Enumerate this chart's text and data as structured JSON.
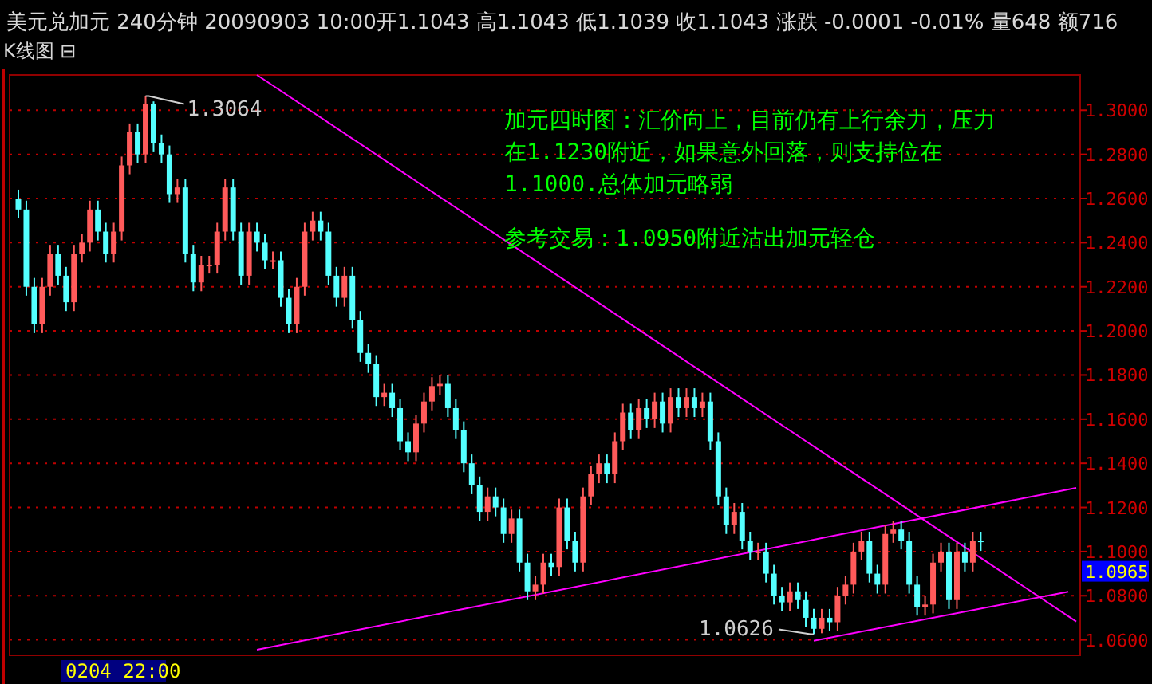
{
  "chart_data": {
    "type": "candlestick",
    "title": "美元兑加元 240分钟  20090903 10:00开1.1043 高1.1043 低1.1039 收1.1043 涨跌  -0.0001 -0.01% 量648 额716",
    "subtitle": "K线图 ⊟",
    "xlabel": "0204 22:00",
    "categories": [
      null,
      null,
      null,
      null,
      null,
      null,
      null,
      null,
      null,
      null,
      null,
      null,
      null,
      null,
      null,
      null,
      null,
      null,
      null,
      null,
      null,
      null,
      null,
      null,
      null,
      null,
      null,
      null,
      null,
      null,
      null,
      null,
      null,
      null,
      null,
      null,
      null,
      null,
      null,
      null,
      null,
      null,
      null,
      null,
      null,
      null,
      null,
      null,
      null,
      null,
      null,
      null,
      null,
      null,
      null,
      null,
      null,
      null,
      null,
      null,
      null,
      null,
      null,
      null,
      null,
      null,
      null,
      null,
      null,
      null,
      null,
      null,
      null,
      null,
      null,
      null,
      null,
      null,
      null,
      null,
      null,
      null,
      null,
      null,
      null,
      null,
      null,
      null,
      null,
      null,
      null,
      null,
      null,
      null,
      null,
      null,
      null,
      null,
      null,
      null,
      null,
      null,
      null,
      null,
      null,
      null,
      null,
      null,
      null,
      null,
      null,
      null,
      null,
      null,
      null,
      null,
      null,
      null,
      null,
      null,
      null,
      null,
      null,
      null,
      null,
      null,
      null,
      null,
      null,
      null,
      null,
      null,
      null,
      null
    ],
    "ohlc": [
      [
        1.26,
        1.264,
        1.251,
        1.255
      ],
      [
        1.255,
        1.259,
        1.216,
        1.22
      ],
      [
        1.22,
        1.224,
        1.199,
        1.203
      ],
      [
        1.203,
        1.224,
        1.199,
        1.22
      ],
      [
        1.22,
        1.239,
        1.216,
        1.235
      ],
      [
        1.235,
        1.239,
        1.221,
        1.225
      ],
      [
        1.225,
        1.229,
        1.209,
        1.213
      ],
      [
        1.213,
        1.239,
        1.209,
        1.235
      ],
      [
        1.235,
        1.244,
        1.231,
        1.24
      ],
      [
        1.24,
        1.259,
        1.236,
        1.255
      ],
      [
        1.255,
        1.259,
        1.241,
        1.245
      ],
      [
        1.245,
        1.249,
        1.231,
        1.235
      ],
      [
        1.235,
        1.249,
        1.231,
        1.245
      ],
      [
        1.245,
        1.279,
        1.241,
        1.275
      ],
      [
        1.275,
        1.294,
        1.271,
        1.29
      ],
      [
        1.29,
        1.294,
        1.276,
        1.28
      ],
      [
        1.28,
        1.3064,
        1.276,
        1.303
      ],
      [
        1.303,
        1.304,
        1.281,
        1.285
      ],
      [
        1.285,
        1.289,
        1.276,
        1.28
      ],
      [
        1.28,
        1.284,
        1.258,
        1.262
      ],
      [
        1.262,
        1.269,
        1.258,
        1.265
      ],
      [
        1.265,
        1.269,
        1.231,
        1.235
      ],
      [
        1.235,
        1.239,
        1.218,
        1.222
      ],
      [
        1.222,
        1.234,
        1.218,
        1.23
      ],
      [
        1.23,
        1.234,
        1.226,
        1.23
      ],
      [
        1.23,
        1.249,
        1.226,
        1.245
      ],
      [
        1.245,
        1.269,
        1.241,
        1.265
      ],
      [
        1.265,
        1.269,
        1.241,
        1.245
      ],
      [
        1.245,
        1.249,
        1.221,
        1.225
      ],
      [
        1.225,
        1.249,
        1.221,
        1.245
      ],
      [
        1.245,
        1.249,
        1.236,
        1.24
      ],
      [
        1.24,
        1.244,
        1.228,
        1.232
      ],
      [
        1.232,
        1.236,
        1.228,
        1.232
      ],
      [
        1.232,
        1.236,
        1.211,
        1.215
      ],
      [
        1.215,
        1.219,
        1.199,
        1.203
      ],
      [
        1.203,
        1.224,
        1.199,
        1.22
      ],
      [
        1.22,
        1.249,
        1.216,
        1.245
      ],
      [
        1.245,
        1.254,
        1.241,
        1.25
      ],
      [
        1.25,
        1.254,
        1.241,
        1.245
      ],
      [
        1.245,
        1.249,
        1.221,
        1.225
      ],
      [
        1.225,
        1.229,
        1.211,
        1.215
      ],
      [
        1.215,
        1.229,
        1.211,
        1.225
      ],
      [
        1.225,
        1.229,
        1.201,
        1.205
      ],
      [
        1.205,
        1.209,
        1.186,
        1.19
      ],
      [
        1.19,
        1.194,
        1.181,
        1.185
      ],
      [
        1.185,
        1.189,
        1.166,
        1.17
      ],
      [
        1.17,
        1.176,
        1.166,
        1.172
      ],
      [
        1.172,
        1.176,
        1.161,
        1.165
      ],
      [
        1.165,
        1.169,
        1.146,
        1.15
      ],
      [
        1.15,
        1.154,
        1.141,
        1.145
      ],
      [
        1.145,
        1.162,
        1.141,
        1.158
      ],
      [
        1.158,
        1.172,
        1.154,
        1.168
      ],
      [
        1.168,
        1.179,
        1.164,
        1.175
      ],
      [
        1.175,
        1.18,
        1.171,
        1.176
      ],
      [
        1.176,
        1.18,
        1.161,
        1.165
      ],
      [
        1.165,
        1.169,
        1.151,
        1.155
      ],
      [
        1.155,
        1.159,
        1.136,
        1.14
      ],
      [
        1.14,
        1.144,
        1.126,
        1.13
      ],
      [
        1.13,
        1.134,
        1.114,
        1.118
      ],
      [
        1.118,
        1.129,
        1.114,
        1.125
      ],
      [
        1.125,
        1.129,
        1.116,
        1.12
      ],
      [
        1.12,
        1.124,
        1.104,
        1.108
      ],
      [
        1.108,
        1.119,
        1.104,
        1.115
      ],
      [
        1.115,
        1.119,
        1.091,
        1.095
      ],
      [
        1.095,
        1.099,
        1.078,
        1.082
      ],
      [
        1.082,
        1.089,
        1.078,
        1.085
      ],
      [
        1.085,
        1.099,
        1.081,
        1.095
      ],
      [
        1.095,
        1.099,
        1.089,
        1.093
      ],
      [
        1.093,
        1.124,
        1.089,
        1.12
      ],
      [
        1.12,
        1.124,
        1.101,
        1.105
      ],
      [
        1.105,
        1.109,
        1.091,
        1.095
      ],
      [
        1.095,
        1.129,
        1.091,
        1.125
      ],
      [
        1.125,
        1.139,
        1.121,
        1.135
      ],
      [
        1.135,
        1.144,
        1.131,
        1.14
      ],
      [
        1.14,
        1.144,
        1.131,
        1.135
      ],
      [
        1.135,
        1.154,
        1.131,
        1.15
      ],
      [
        1.15,
        1.167,
        1.146,
        1.163
      ],
      [
        1.163,
        1.167,
        1.151,
        1.155
      ],
      [
        1.155,
        1.169,
        1.151,
        1.165
      ],
      [
        1.165,
        1.169,
        1.156,
        1.16
      ],
      [
        1.16,
        1.172,
        1.156,
        1.168
      ],
      [
        1.168,
        1.172,
        1.154,
        1.158
      ],
      [
        1.158,
        1.174,
        1.154,
        1.17
      ],
      [
        1.17,
        1.174,
        1.161,
        1.165
      ],
      [
        1.165,
        1.174,
        1.161,
        1.17
      ],
      [
        1.17,
        1.174,
        1.161,
        1.165
      ],
      [
        1.165,
        1.172,
        1.161,
        1.168
      ],
      [
        1.168,
        1.172,
        1.146,
        1.15
      ],
      [
        1.15,
        1.154,
        1.121,
        1.125
      ],
      [
        1.125,
        1.129,
        1.108,
        1.112
      ],
      [
        1.112,
        1.122,
        1.108,
        1.118
      ],
      [
        1.118,
        1.122,
        1.101,
        1.105
      ],
      [
        1.105,
        1.109,
        1.096,
        1.1
      ],
      [
        1.1,
        1.104,
        1.096,
        1.1
      ],
      [
        1.1,
        1.104,
        1.086,
        1.09
      ],
      [
        1.09,
        1.094,
        1.076,
        1.08
      ],
      [
        1.08,
        1.084,
        1.073,
        1.077
      ],
      [
        1.077,
        1.086,
        1.073,
        1.082
      ],
      [
        1.082,
        1.086,
        1.074,
        1.078
      ],
      [
        1.078,
        1.082,
        1.066,
        1.07
      ],
      [
        1.07,
        1.074,
        1.0626,
        1.065
      ],
      [
        1.065,
        1.074,
        1.063,
        1.07
      ],
      [
        1.07,
        1.074,
        1.064,
        1.068
      ],
      [
        1.068,
        1.084,
        1.064,
        1.08
      ],
      [
        1.08,
        1.089,
        1.076,
        1.085
      ],
      [
        1.085,
        1.104,
        1.081,
        1.1
      ],
      [
        1.1,
        1.109,
        1.096,
        1.105
      ],
      [
        1.105,
        1.109,
        1.086,
        1.09
      ],
      [
        1.09,
        1.094,
        1.081,
        1.085
      ],
      [
        1.085,
        1.112,
        1.081,
        1.108
      ],
      [
        1.108,
        1.114,
        1.104,
        1.11
      ],
      [
        1.11,
        1.114,
        1.101,
        1.105
      ],
      [
        1.105,
        1.109,
        1.081,
        1.085
      ],
      [
        1.085,
        1.089,
        1.071,
        1.075
      ],
      [
        1.075,
        1.08,
        1.071,
        1.076
      ],
      [
        1.076,
        1.099,
        1.072,
        1.095
      ],
      [
        1.095,
        1.104,
        1.091,
        1.1
      ],
      [
        1.1,
        1.104,
        1.074,
        1.078
      ],
      [
        1.078,
        1.104,
        1.074,
        1.1
      ],
      [
        1.1,
        1.104,
        1.091,
        1.095
      ],
      [
        1.095,
        1.109,
        1.091,
        1.105
      ],
      [
        1.105,
        1.109,
        1.1003,
        1.1043
      ],
      null,
      null,
      null,
      null,
      null,
      null,
      null,
      null,
      null,
      null,
      null,
      null
    ],
    "colors": [
      "#54ffff",
      "#54ffff",
      "#54ffff",
      "#ff5a5a",
      "#ff5a5a",
      "#54ffff",
      "#54ffff",
      "#ff5a5a",
      "#ff5a5a",
      "#ff5a5a",
      "#54ffff",
      "#54ffff",
      "#ff5a5a",
      "#ff5a5a",
      "#ff5a5a",
      "#54ffff",
      "#ff5a5a",
      "#54ffff",
      "#54ffff",
      "#54ffff",
      "#ff5a5a",
      "#54ffff",
      "#54ffff",
      "#ff5a5a",
      "#ff5a5a",
      "#ff5a5a",
      "#ff5a5a",
      "#54ffff",
      "#54ffff",
      "#ff5a5a",
      "#54ffff",
      "#54ffff",
      "#ff5a5a",
      "#54ffff",
      "#54ffff",
      "#ff5a5a",
      "#ff5a5a",
      "#ff5a5a",
      "#54ffff",
      "#54ffff",
      "#54ffff",
      "#ff5a5a",
      "#54ffff",
      "#54ffff",
      "#54ffff",
      "#54ffff",
      "#ff5a5a",
      "#54ffff",
      "#54ffff",
      "#54ffff",
      "#ff5a5a",
      "#ff5a5a",
      "#ff5a5a",
      "#ff5a5a",
      "#54ffff",
      "#54ffff",
      "#54ffff",
      "#54ffff",
      "#54ffff",
      "#ff5a5a",
      "#54ffff",
      "#54ffff",
      "#ff5a5a",
      "#54ffff",
      "#54ffff",
      "#ff5a5a",
      "#ff5a5a",
      "#54ffff",
      "#ff5a5a",
      "#54ffff",
      "#54ffff",
      "#ff5a5a",
      "#ff5a5a",
      "#ff5a5a",
      "#54ffff",
      "#ff5a5a",
      "#ff5a5a",
      "#54ffff",
      "#ff5a5a",
      "#54ffff",
      "#ff5a5a",
      "#54ffff",
      "#ff5a5a",
      "#54ffff",
      "#ff5a5a",
      "#54ffff",
      "#ff5a5a",
      "#54ffff",
      "#54ffff",
      "#54ffff",
      "#ff5a5a",
      "#54ffff",
      "#54ffff",
      "#ff5a5a",
      "#54ffff",
      "#54ffff",
      "#54ffff",
      "#ff5a5a",
      "#54ffff",
      "#54ffff",
      "#54ffff",
      "#ff5a5a",
      "#54ffff",
      "#ff5a5a",
      "#ff5a5a",
      "#ff5a5a",
      "#ff5a5a",
      "#54ffff",
      "#54ffff",
      "#ff5a5a",
      "#ff5a5a",
      "#54ffff",
      "#54ffff",
      "#54ffff",
      "#ff5a5a",
      "#ff5a5a",
      "#ff5a5a",
      "#54ffff",
      "#ff5a5a",
      "#54ffff",
      "#ff5a5a",
      "#54ffff",
      null,
      null,
      null,
      null,
      null,
      null,
      null,
      null,
      null,
      null,
      null,
      null
    ],
    "series": [
      {
        "type": "line",
        "values": [
          null,
          null,
          null,
          null,
          null,
          null,
          null,
          null,
          null,
          null,
          null,
          null,
          null,
          null,
          null,
          null,
          null,
          null,
          null,
          null,
          null,
          null,
          null,
          null,
          null,
          null,
          null,
          null,
          null,
          null,
          1.316,
          null,
          null,
          null,
          null,
          null,
          null,
          null,
          null,
          null,
          null,
          null,
          null,
          null,
          null,
          null,
          null,
          null,
          null,
          null,
          null,
          null,
          null,
          null,
          null,
          null,
          null,
          null,
          null,
          null,
          null,
          null,
          null,
          null,
          null,
          null,
          null,
          null,
          null,
          null,
          null,
          null,
          null,
          null,
          null,
          null,
          null,
          null,
          null,
          null,
          null,
          null,
          null,
          null,
          null,
          null,
          null,
          null,
          null,
          null,
          null,
          null,
          null,
          null,
          null,
          null,
          null,
          null,
          null,
          null,
          null,
          null,
          null,
          null,
          null,
          null,
          null,
          null,
          null,
          null,
          null,
          null,
          null,
          null,
          null,
          null,
          null,
          null,
          null,
          null,
          null,
          null,
          null,
          null,
          null,
          null,
          null,
          null,
          null,
          null,
          null,
          null,
          null,
          1.0683
        ],
        "color": "#ff00ff"
      },
      {
        "type": "line",
        "values": [
          null,
          null,
          null,
          null,
          null,
          null,
          null,
          null,
          null,
          null,
          null,
          null,
          null,
          null,
          null,
          null,
          null,
          null,
          null,
          null,
          null,
          null,
          null,
          null,
          null,
          null,
          null,
          null,
          null,
          null,
          1.0555,
          null,
          null,
          null,
          null,
          null,
          null,
          null,
          null,
          null,
          null,
          null,
          null,
          null,
          null,
          null,
          null,
          null,
          null,
          null,
          null,
          null,
          null,
          null,
          null,
          null,
          null,
          null,
          null,
          null,
          null,
          null,
          null,
          null,
          null,
          null,
          null,
          null,
          null,
          null,
          null,
          null,
          null,
          null,
          null,
          null,
          null,
          null,
          null,
          null,
          null,
          null,
          null,
          null,
          null,
          null,
          null,
          null,
          null,
          null,
          null,
          null,
          null,
          null,
          null,
          null,
          null,
          null,
          null,
          null,
          null,
          null,
          null,
          null,
          null,
          null,
          null,
          null,
          null,
          null,
          null,
          null,
          null,
          null,
          null,
          null,
          null,
          null,
          null,
          null,
          null,
          null,
          null,
          null,
          null,
          null,
          null,
          null,
          null,
          null,
          null,
          null,
          null,
          1.1289
        ],
        "color": "#ff00ff"
      },
      {
        "type": "line",
        "values": [
          null,
          null,
          null,
          null,
          null,
          null,
          null,
          null,
          null,
          null,
          null,
          null,
          null,
          null,
          null,
          null,
          null,
          null,
          null,
          null,
          null,
          null,
          null,
          null,
          null,
          null,
          null,
          null,
          null,
          null,
          null,
          null,
          null,
          null,
          null,
          null,
          null,
          null,
          null,
          null,
          null,
          null,
          null,
          null,
          null,
          null,
          null,
          null,
          null,
          null,
          null,
          null,
          null,
          null,
          null,
          null,
          null,
          null,
          null,
          null,
          null,
          null,
          null,
          null,
          null,
          null,
          null,
          null,
          null,
          null,
          null,
          null,
          null,
          null,
          null,
          null,
          null,
          null,
          null,
          null,
          null,
          null,
          null,
          null,
          null,
          null,
          null,
          null,
          null,
          null,
          null,
          null,
          null,
          null,
          null,
          null,
          null,
          null,
          null,
          null,
          1.0596,
          null,
          null,
          null,
          null,
          null,
          null,
          null,
          null,
          null,
          null,
          null,
          null,
          null,
          null,
          null,
          null,
          null,
          null,
          null,
          null,
          null,
          null,
          null,
          null,
          null,
          null,
          null,
          null,
          null,
          null,
          null,
          1.0818,
          null
        ],
        "color": "#ff00ff"
      }
    ],
    "ylim": [
      1.053,
      1.316
    ],
    "yticks": [
      {
        "value": 1.06,
        "label": "1.0600"
      },
      {
        "value": 1.08,
        "label": "1.0800"
      },
      {
        "value": 1.1,
        "label": "1.1000"
      },
      {
        "value": 1.12,
        "label": "1.1200"
      },
      {
        "value": 1.14,
        "label": "1.1400"
      },
      {
        "value": 1.16,
        "label": "1.1600"
      },
      {
        "value": 1.18,
        "label": "1.1800"
      },
      {
        "value": 1.2,
        "label": "1.2000"
      },
      {
        "value": 1.22,
        "label": "1.2200"
      },
      {
        "value": 1.24,
        "label": "1.2400"
      },
      {
        "value": 1.26,
        "label": "1.2600"
      },
      {
        "value": 1.28,
        "label": "1.2800"
      },
      {
        "value": 1.3,
        "label": "1.3000"
      }
    ],
    "grid": "y",
    "annotations": [
      "1.3064",
      "1.0626",
      "1.0965",
      "加元四时图：汇价向上，目前仍有上行余力，压力",
      "在1.1230附近，如果意外回落，则支持位在",
      "1.1000.总体加元略弱",
      "参考交易：1.0950附近沽出加元轻仓"
    ]
  }
}
